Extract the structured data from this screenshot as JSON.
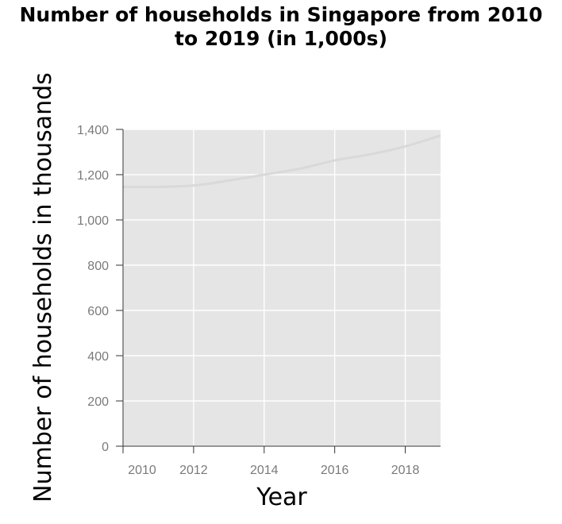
{
  "chart_data": {
    "type": "line",
    "title_lines": [
      "Number of households in Singapore from 2010",
      "to 2019 (in 1,000s)"
    ],
    "xlabel": "Year",
    "ylabel": "Number of households in thousands",
    "x": [
      2010,
      2011,
      2012,
      2013,
      2014,
      2015,
      2016,
      2017,
      2018,
      2019
    ],
    "series": [
      {
        "values": [
          1146,
          1146,
          1152,
          1174,
          1200,
          1226,
          1263,
          1290,
          1325,
          1373
        ]
      }
    ],
    "xlim": [
      2010,
      2019
    ],
    "ylim": [
      0,
      1400
    ],
    "x_ticks": [
      {
        "value": 2010,
        "label": "2010"
      },
      {
        "value": 2012,
        "label": "2012"
      },
      {
        "value": 2014,
        "label": "2014"
      },
      {
        "value": 2016,
        "label": "2016"
      },
      {
        "value": 2018,
        "label": "2018"
      }
    ],
    "y_ticks": [
      {
        "value": 0,
        "label": "0"
      },
      {
        "value": 200,
        "label": "200"
      },
      {
        "value": 400,
        "label": "400"
      },
      {
        "value": 600,
        "label": "600"
      },
      {
        "value": 800,
        "label": "800"
      },
      {
        "value": 1000,
        "label": "1,000"
      },
      {
        "value": 1200,
        "label": "1,200"
      },
      {
        "value": 1400,
        "label": "1,400"
      }
    ],
    "grid": true,
    "legend": "none",
    "colors": {
      "panel": "#e5e5e5",
      "grid": "#ffffff",
      "line": "#d9d9d9",
      "axis": "#333333",
      "tick_label": "#7a7a7a"
    }
  }
}
